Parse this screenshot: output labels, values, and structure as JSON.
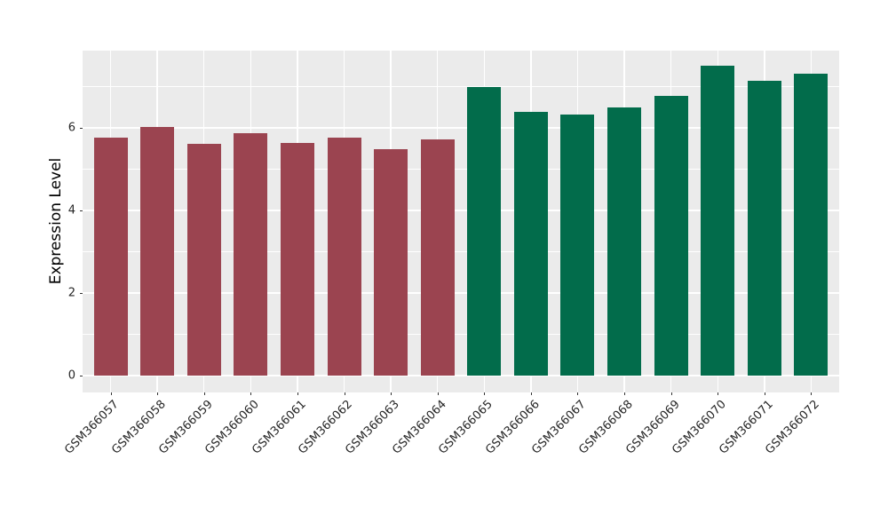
{
  "figure": {
    "background": "#FFFFFF",
    "panel_background": "#EBEBEB",
    "gridline_color": "#FFFFFF",
    "axis_text_color": "#262626",
    "axis_title_color": "#000000",
    "tick_mark_color": "#333333"
  },
  "chart_data": {
    "type": "bar",
    "title": "",
    "xlabel": "",
    "ylabel": "Expression Level",
    "categories": [
      "GSM366057",
      "GSM366058",
      "GSM366059",
      "GSM366060",
      "GSM366061",
      "GSM366062",
      "GSM366063",
      "GSM366064",
      "GSM366065",
      "GSM366066",
      "GSM366067",
      "GSM366068",
      "GSM366069",
      "GSM366070",
      "GSM366071",
      "GSM366072"
    ],
    "values": [
      5.76,
      6.02,
      5.62,
      5.87,
      5.64,
      5.78,
      5.49,
      5.73,
      7.0,
      6.4,
      6.34,
      6.5,
      6.78,
      7.51,
      7.15,
      7.32
    ],
    "bar_colors": [
      "#9B4450",
      "#9B4450",
      "#9B4450",
      "#9B4450",
      "#9B4450",
      "#9B4450",
      "#9B4450",
      "#9B4450",
      "#026C4B",
      "#026C4B",
      "#026C4B",
      "#026C4B",
      "#026C4B",
      "#026C4B",
      "#026C4B",
      "#026C4B"
    ],
    "group_colors": [
      "#9B4450",
      "#026C4B"
    ],
    "yticks": [
      0,
      2,
      4,
      6
    ],
    "minor_gridlines": [
      1,
      3,
      5,
      7
    ],
    "ylim_displayed": [
      -0.4,
      7.87
    ],
    "grid": true,
    "legend": false,
    "x_label_rotation_deg": 45
  }
}
